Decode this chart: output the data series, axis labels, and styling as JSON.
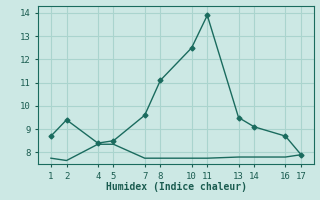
{
  "xlabel": "Humidex (Indice chaleur)",
  "x_ticks": [
    1,
    2,
    4,
    5,
    7,
    8,
    10,
    11,
    13,
    14,
    16,
    17
  ],
  "series1_x": [
    1,
    2,
    4,
    5,
    7,
    8,
    10,
    11,
    13,
    14,
    16,
    17
  ],
  "series1_y": [
    8.7,
    9.4,
    8.4,
    8.5,
    9.6,
    11.1,
    12.5,
    13.9,
    9.5,
    9.1,
    8.7,
    7.9
  ],
  "series2_x": [
    1,
    2,
    4,
    5,
    7,
    8,
    10,
    11,
    13,
    14,
    16,
    17
  ],
  "series2_y": [
    7.75,
    7.65,
    8.35,
    8.35,
    7.75,
    7.75,
    7.75,
    7.75,
    7.8,
    7.8,
    7.8,
    7.9
  ],
  "line_color": "#1a6b5e",
  "bg_color": "#cce8e4",
  "plot_bg_color": "#cce8e4",
  "grid_color": "#aad4ce",
  "ylim": [
    7.5,
    14.3
  ],
  "yticks": [
    8,
    9,
    10,
    11,
    12,
    13,
    14
  ],
  "font_color": "#1a5c50",
  "marker": "D",
  "marker_size": 2.5,
  "line_width": 1.0
}
